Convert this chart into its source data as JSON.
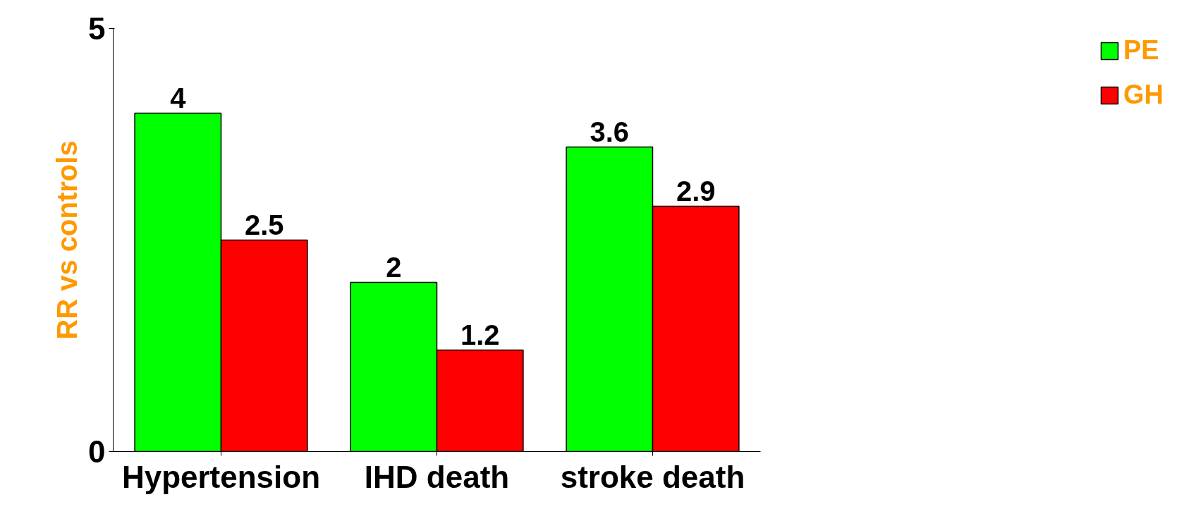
{
  "chart_data": {
    "type": "bar",
    "ylabel": "RR vs controls",
    "categories": [
      "Hypertension",
      "IHD death",
      "stroke death"
    ],
    "series": [
      {
        "name": "PE",
        "color": "#00ff00",
        "values": [
          4,
          2,
          3.6
        ]
      },
      {
        "name": "GH",
        "color": "#ff0000",
        "values": [
          2.5,
          1.2,
          2.9
        ]
      }
    ],
    "ylim": [
      0,
      5
    ],
    "yticks": [
      0,
      5
    ],
    "data_labels": true,
    "legend": "right",
    "grid": false
  }
}
